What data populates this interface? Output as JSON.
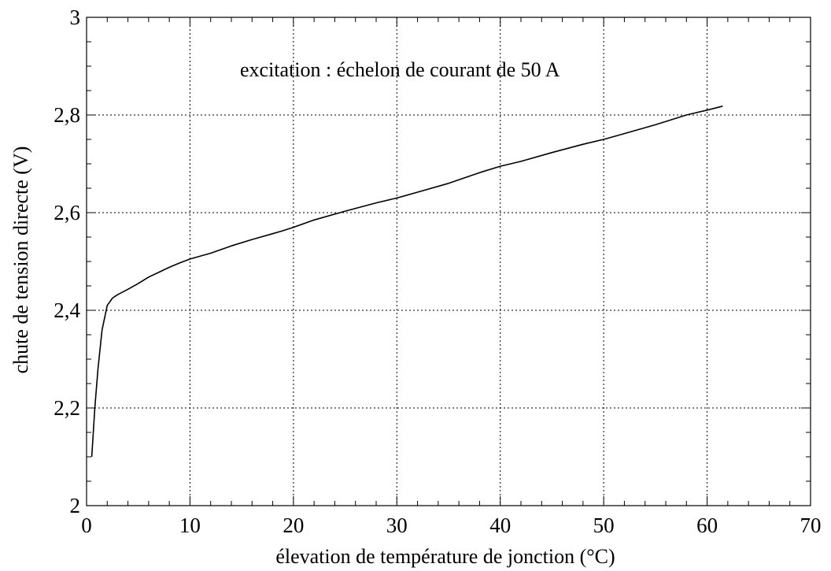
{
  "chart_data": {
    "type": "line",
    "annotation": "excitation : échelon de courant de 50 A",
    "xlabel": "élevation de température de jonction (°C)",
    "ylabel": "chute de tension directe (V)",
    "xlim": [
      0,
      70
    ],
    "ylim": [
      2,
      3
    ],
    "x_ticks": [
      "0",
      "10",
      "20",
      "30",
      "40",
      "50",
      "60",
      "70"
    ],
    "y_ticks": [
      "2",
      "2,2",
      "2,4",
      "2,6",
      "2,8",
      "3"
    ],
    "grid": true,
    "series": [
      {
        "color": "#000000",
        "x": [
          0.5,
          0.8,
          1.1,
          1.5,
          2.0,
          2.5,
          3.0,
          4.0,
          5.0,
          6.0,
          7.0,
          8.0,
          9.0,
          10.0,
          12.0,
          14.0,
          16.0,
          18.0,
          19.0,
          20.0,
          22.0,
          25.0,
          28.0,
          30.0,
          32.0,
          35.0,
          38.0,
          40.0,
          42.0,
          45.0,
          48.0,
          50.0,
          52.0,
          55.0,
          58.0,
          60.0,
          61.5
        ],
        "y": [
          2.1,
          2.2,
          2.28,
          2.36,
          2.41,
          2.425,
          2.432,
          2.443,
          2.455,
          2.468,
          2.478,
          2.488,
          2.497,
          2.505,
          2.517,
          2.532,
          2.545,
          2.557,
          2.563,
          2.57,
          2.585,
          2.603,
          2.62,
          2.63,
          2.642,
          2.66,
          2.682,
          2.695,
          2.705,
          2.723,
          2.74,
          2.75,
          2.762,
          2.78,
          2.8,
          2.81,
          2.818
        ]
      }
    ]
  }
}
